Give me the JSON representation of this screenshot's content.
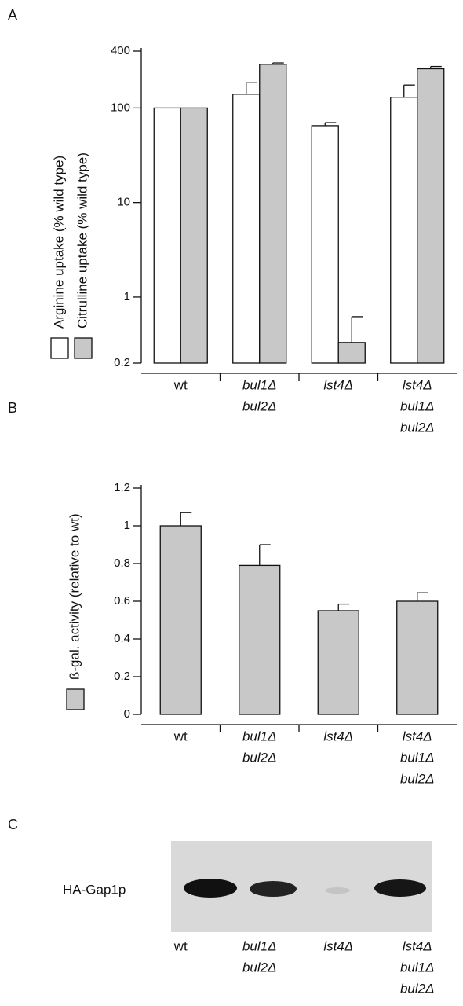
{
  "chart_data": [
    {
      "type": "bar",
      "panel": "A",
      "log_y": true,
      "categories": [
        [
          "wt"
        ],
        [
          "bul1Δ",
          "bul2Δ"
        ],
        [
          "lst4Δ"
        ],
        [
          "lst4Δ",
          "bul1Δ",
          "bul2Δ"
        ]
      ],
      "series": [
        {
          "name": "Arginine uptake (% wild type)",
          "color": "#ffffff",
          "values": [
            100,
            140,
            65,
            130
          ],
          "errors": [
            null,
            45,
            5,
            45
          ]
        },
        {
          "name": "Citrulline uptake (% wild type)",
          "color": "#c8c8c8",
          "values": [
            100,
            290,
            0.33,
            260
          ],
          "errors": [
            null,
            10,
            0.29,
            15
          ]
        }
      ],
      "ylim": [
        0.2,
        400
      ],
      "yticks": [
        0.2,
        1,
        10,
        100,
        400
      ]
    },
    {
      "type": "bar",
      "panel": "B",
      "log_y": false,
      "categories": [
        [
          "wt"
        ],
        [
          "bul1Δ",
          "bul2Δ"
        ],
        [
          "lst4Δ"
        ],
        [
          "lst4Δ",
          "bul1Δ",
          "bul2Δ"
        ]
      ],
      "series": [
        {
          "name": "ß-gal. activity (relative to wt)",
          "color": "#c8c8c8",
          "values": [
            1.0,
            0.79,
            0.55,
            0.6
          ],
          "errors": [
            0.07,
            0.11,
            0.035,
            0.045
          ]
        }
      ],
      "ylim": [
        0,
        1.2
      ],
      "yticks": [
        0,
        0.2,
        0.4,
        0.6,
        0.8,
        1,
        1.2
      ]
    }
  ],
  "blot": {
    "panel": "C",
    "row_label": "HA-Gap1p",
    "lanes": [
      [
        "wt"
      ],
      [
        "bul1Δ",
        "bul2Δ"
      ],
      [
        "lst4Δ"
      ],
      [
        "lst4Δ",
        "bul1Δ",
        "bul2Δ"
      ]
    ]
  }
}
